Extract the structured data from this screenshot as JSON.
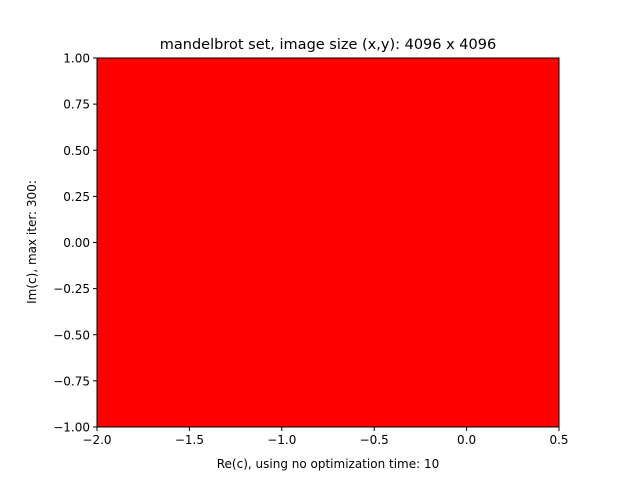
{
  "chart_data": {
    "type": "heatmap",
    "title": "mandelbrot set, image size (x,y): 4096 x 4096",
    "xlabel": "Re(c), using no optimization time: 10",
    "ylabel": "Im(c), max iter: 300:",
    "xlim": [
      -2.0,
      0.5
    ],
    "ylim": [
      -1.0,
      1.0
    ],
    "xticks": [
      {
        "value": -2.0,
        "label": "−2.0"
      },
      {
        "value": -1.5,
        "label": "−1.5"
      },
      {
        "value": -1.0,
        "label": "−1.0"
      },
      {
        "value": -0.5,
        "label": "−0.5"
      },
      {
        "value": 0.0,
        "label": "0.0"
      },
      {
        "value": 0.5,
        "label": "0.5"
      }
    ],
    "yticks": [
      {
        "value": -1.0,
        "label": "−1.00"
      },
      {
        "value": -0.75,
        "label": "−0.75"
      },
      {
        "value": -0.5,
        "label": "−0.50"
      },
      {
        "value": -0.25,
        "label": "−0.25"
      },
      {
        "value": 0.0,
        "label": "0.00"
      },
      {
        "value": 0.25,
        "label": "0.25"
      },
      {
        "value": 0.5,
        "label": "0.50"
      },
      {
        "value": 0.75,
        "label": "0.75"
      },
      {
        "value": 1.0,
        "label": "1.00"
      }
    ],
    "fill_color": "#ff0000",
    "grid": false,
    "legend": "none"
  }
}
